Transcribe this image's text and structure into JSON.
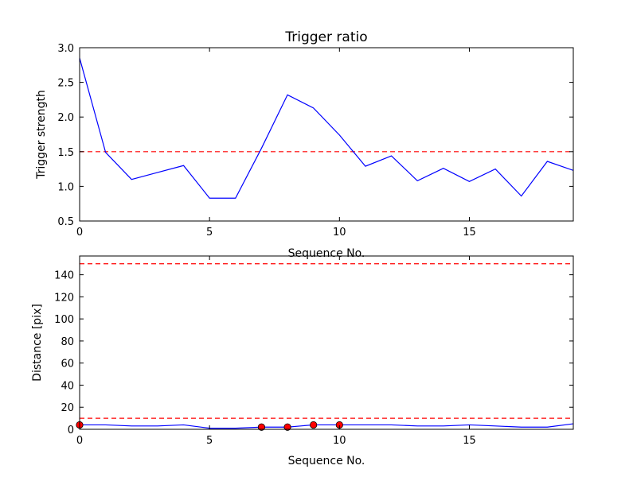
{
  "chart_data": [
    {
      "type": "line",
      "title": "Trigger ratio",
      "xlabel": "Sequence No.",
      "ylabel": "Trigger strength",
      "xlim": [
        0,
        19
      ],
      "ylim": [
        0.5,
        3.0
      ],
      "xticks": [
        0,
        5,
        10,
        15
      ],
      "yticks": [
        0.5,
        1.0,
        1.5,
        2.0,
        2.5,
        3.0
      ],
      "grid": false,
      "series": [
        {
          "color": "#0000ff",
          "style": "solid",
          "x": [
            0,
            1,
            2,
            3,
            4,
            5,
            6,
            7,
            8,
            9,
            10,
            11,
            12,
            13,
            14,
            15,
            16,
            17,
            18,
            19
          ],
          "y": [
            2.85,
            1.49,
            1.1,
            1.2,
            1.3,
            0.83,
            0.83,
            1.55,
            2.32,
            2.13,
            1.74,
            1.29,
            1.44,
            1.08,
            1.26,
            1.07,
            1.25,
            0.86,
            1.36,
            1.23
          ]
        }
      ],
      "hlines": [
        {
          "y": 1.5,
          "color": "#ff0000",
          "style": "dashed"
        }
      ]
    },
    {
      "type": "line",
      "title": "",
      "xlabel": "Sequence No.",
      "ylabel": "Distance [pix]",
      "xlim": [
        0,
        19
      ],
      "ylim": [
        0,
        157
      ],
      "xticks": [
        0,
        5,
        10,
        15
      ],
      "yticks": [
        0,
        20,
        40,
        60,
        80,
        100,
        120,
        140
      ],
      "grid": false,
      "series": [
        {
          "color": "#0000ff",
          "style": "solid",
          "x": [
            0,
            1,
            2,
            3,
            4,
            5,
            6,
            7,
            8,
            9,
            10,
            11,
            12,
            13,
            14,
            15,
            16,
            17,
            18,
            19
          ],
          "y": [
            4,
            4,
            3,
            3,
            4,
            1,
            1,
            2,
            2,
            4,
            4,
            4,
            4,
            3,
            3,
            4,
            3,
            2,
            2,
            5
          ]
        }
      ],
      "markers": {
        "color": "#ff0000",
        "x": [
          0,
          7,
          8,
          9,
          10
        ],
        "y": [
          4,
          2,
          2,
          4,
          4
        ]
      },
      "hlines": [
        {
          "y": 10,
          "color": "#ff0000",
          "style": "dashed"
        },
        {
          "y": 150,
          "color": "#ff0000",
          "style": "dashed"
        }
      ]
    }
  ]
}
